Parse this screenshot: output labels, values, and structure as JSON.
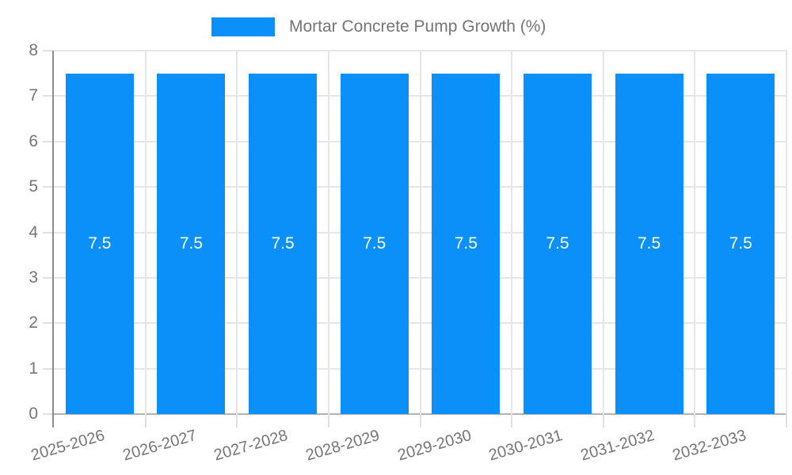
{
  "legend": {
    "label": "Mortar Concrete Pump Growth (%)"
  },
  "chart_data": {
    "type": "bar",
    "title": "Mortar Concrete Pump Growth (%)",
    "categories": [
      "2025-2026",
      "2026-2027",
      "2027-2028",
      "2028-2029",
      "2029-2030",
      "2030-2031",
      "2031-2032",
      "2032-2033"
    ],
    "values": [
      7.5,
      7.5,
      7.5,
      7.5,
      7.5,
      7.5,
      7.5,
      7.5
    ],
    "value_labels": [
      "7.5",
      "7.5",
      "7.5",
      "7.5",
      "7.5",
      "7.5",
      "7.5",
      "7.5"
    ],
    "xlabel": "",
    "ylabel": "",
    "ylim": [
      0,
      8
    ],
    "yticks": [
      "0",
      "1",
      "2",
      "3",
      "4",
      "5",
      "6",
      "7",
      "8"
    ],
    "grid": true,
    "legend_position": "top",
    "colors": {
      "bar": "#0A90F8",
      "bar_label": "#ffffff",
      "tick_text": "#757575",
      "gridline": "#e6e6e6",
      "tick_mark": "#e0e0e0",
      "axis_line": "#8c8c8c",
      "baseline": "#b3b3b3",
      "background": "#ffffff"
    }
  }
}
